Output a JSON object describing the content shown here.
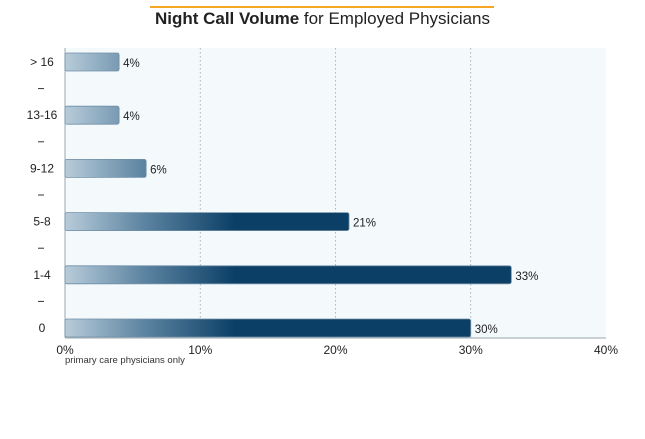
{
  "title": {
    "bold": "Night Call Volume",
    "rest": " for Employed Physicians"
  },
  "footnote": "primary care physicians only",
  "colors": {
    "title_rule": "#f5a623",
    "bar_dark": "#0b3f66",
    "bar_light": "#b8ccda",
    "plot_bg": "#f4f9fc",
    "grid": "#9aa6ae"
  },
  "chart_data": {
    "type": "bar",
    "orientation": "horizontal",
    "title": "Night Call Volume for Employed Physicians",
    "categories": [
      "> 16",
      "13-16",
      "9-12",
      "5-8",
      "1-4",
      "0"
    ],
    "values": [
      4,
      4,
      6,
      21,
      33,
      30
    ],
    "value_labels": [
      "4%",
      "4%",
      "6%",
      "21%",
      "33%",
      "30%"
    ],
    "xlim": [
      0,
      40
    ],
    "xticks": [
      0,
      10,
      20,
      30,
      40
    ],
    "xtick_labels": [
      "0%",
      "10%",
      "20%",
      "30%",
      "40%"
    ],
    "grid": true,
    "legend": "none"
  }
}
